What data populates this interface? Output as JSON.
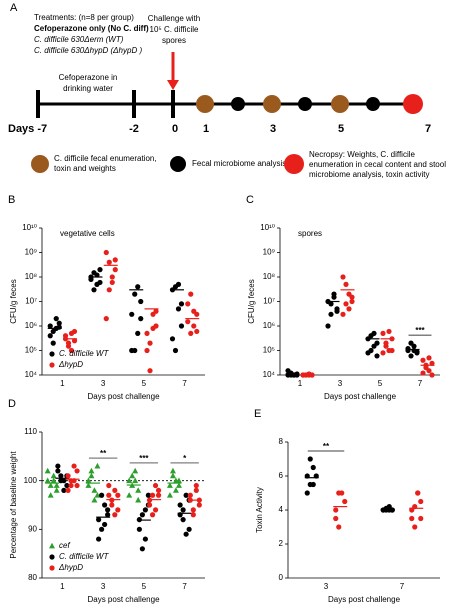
{
  "panel_a": {
    "label": "A",
    "treatments": [
      "Treatments: (n=8 per group)",
      "Cefoperazone only (No C. diff)",
      "C. difficile 630Δerm (WT)",
      "C. difficile 630ΔhypD (ΔhypD )"
    ],
    "challenge": [
      "Challenge with",
      "10⁵ C. difficile",
      "spores"
    ],
    "water": [
      "Cefoperazone in",
      "drinking water"
    ],
    "days": [
      "Days -7",
      "-2",
      "0",
      "1",
      "3",
      "5",
      "7"
    ],
    "legend": {
      "brown": [
        "C. difficile fecal enumeration,",
        "toxin and weights"
      ],
      "black": [
        "Fecal microbiome analysis"
      ],
      "red": [
        "Necropsy: Weights, C. difficile",
        "enumeration in cecal content and stool",
        "microbiome analysis, toxin activity"
      ]
    }
  },
  "chart_data": [
    {
      "type": "scatter",
      "label": "B",
      "title": "vegetative cells",
      "ylabel": "CFU/g feces",
      "xlabel": "Days post challenge",
      "categories": [
        "1",
        "3",
        "5",
        "7"
      ],
      "log_y": true,
      "ylim": [
        10000.0,
        10000000000.0
      ],
      "yticks": [
        {
          "value": 10000.0,
          "label": "10⁴"
        },
        {
          "value": 100000.0,
          "label": "10⁵"
        },
        {
          "value": 1000000.0,
          "label": "10⁶"
        },
        {
          "value": 10000000.0,
          "label": "10⁷"
        },
        {
          "value": 100000000.0,
          "label": "10⁸"
        },
        {
          "value": 1000000000.0,
          "label": "10⁹"
        },
        {
          "value": 10000000000.0,
          "label": "10¹⁰"
        }
      ],
      "legend": "lower left",
      "series": [
        {
          "name": "C. difficile WT",
          "color": "#000000",
          "marker": "circle",
          "values": [
            [
              1000000.0,
              600000.0,
              800000.0,
              1300000.0,
              400000.0,
              200000.0,
              2000000.0,
              900000.0
            ],
            [
              100000000.0,
              150000000.0,
              50000000.0,
              200000000.0,
              80000000.0,
              30000000.0,
              120000000.0,
              60000000.0
            ],
            [
              3000000.0,
              20000000.0,
              500000.0,
              10000000.0,
              100000.0,
              100000.0,
              40000000.0,
              2000000.0
            ],
            [
              30000000.0,
              40000000.0,
              5000000.0,
              1000000.0,
              300000.0,
              100000.0,
              50000000.0,
              8000000.0
            ]
          ],
          "means": [
            800000.0,
            100000000.0,
            30000000.0,
            30000000.0
          ]
        },
        {
          "name": "ΔhypD",
          "color": "#e8201c",
          "marker": "circle",
          "values": [
            [
              400000.0,
              200000.0,
              100000.0,
              600000.0,
              300000.0,
              150000.0,
              500000.0,
              250000.0
            ],
            [
              1000000000.0,
              400000000.0,
              60000000.0,
              200000000.0,
              2000000.0,
              30000000.0,
              100000000.0,
              500000000.0
            ],
            [
              500000.0,
              200000.0,
              3000000.0,
              1000000.0,
              100000.0,
              15000.0,
              800000.0,
              4000000.0
            ],
            [
              8000000.0,
              20000000.0,
              1000000.0,
              3000000.0,
              1500000.0,
              500000.0,
              4000000.0,
              600000.0
            ]
          ],
          "means": [
            300000.0,
            300000000.0,
            5000000.0,
            2000000.0
          ]
        }
      ]
    },
    {
      "type": "scatter",
      "label": "C",
      "title": "spores",
      "ylabel": "CFU/g feces",
      "xlabel": "Days post challenge",
      "categories": [
        "1",
        "3",
        "5",
        "7"
      ],
      "log_y": true,
      "ylim": [
        10000.0,
        10000000000.0
      ],
      "yticks": [
        {
          "value": 10000.0,
          "label": "10⁴"
        },
        {
          "value": 100000.0,
          "label": "10⁵"
        },
        {
          "value": 1000000.0,
          "label": "10⁶"
        },
        {
          "value": 10000000.0,
          "label": "10⁷"
        },
        {
          "value": 100000000.0,
          "label": "10⁸"
        },
        {
          "value": 1000000000.0,
          "label": "10⁹"
        },
        {
          "value": 10000000000.0,
          "label": "10¹⁰"
        }
      ],
      "annotations": [
        null,
        null,
        null,
        "***"
      ],
      "series": [
        {
          "color": "#000000",
          "marker": "circle",
          "values": [
            [
              10000.0,
              12000.0,
              10000.0,
              10000.0,
              15000.0,
              10000.0,
              10000.0,
              11000.0
            ],
            [
              10000000.0,
              3000000.0,
              20000000.0,
              5000000.0,
              1000000.0,
              8000000.0,
              15000000.0,
              4000000.0
            ],
            [
              300000.0,
              100000.0,
              500000.0,
              200000.0,
              80000.0,
              400000.0,
              150000.0,
              60000.0
            ],
            [
              100000.0,
              200000.0,
              150000.0,
              80000.0,
              120000.0,
              60000.0,
              100000.0,
              90000.0
            ]
          ],
          "means": [
            11000.0,
            10000000.0,
            300000.0,
            110000.0
          ]
        },
        {
          "color": "#e8201c",
          "marker": "circle",
          "values": [
            [
              10000.0,
              10000.0,
              11000.0,
              10000.0,
              10000.0,
              10000.0,
              10000.0,
              10000.0
            ],
            [
              100000000.0,
              50000000.0,
              20000000.0,
              10000000.0,
              3000000.0,
              8000000.0,
              5000000.0,
              15000000.0
            ],
            [
              500000.0,
              200000.0,
              100000.0,
              300000.0,
              80000.0,
              150000.0,
              600000.0,
              100000.0
            ],
            [
              40000.0,
              25000.0,
              15000.0,
              30000.0,
              12000.0,
              20000.0,
              50000.0,
              10000.0
            ]
          ],
          "means": [
            10000.0,
            30000000.0,
            300000.0,
            25000.0
          ]
        }
      ]
    },
    {
      "type": "scatter",
      "label": "D",
      "ylabel": "Percentage of baseline weight",
      "xlabel": "Days post challenge",
      "categories": [
        "1",
        "3",
        "5",
        "7"
      ],
      "ylim": [
        80,
        110
      ],
      "yticks": [
        80,
        90,
        100,
        110
      ],
      "refline": 100,
      "annotations": [
        null,
        "**",
        "***",
        "*"
      ],
      "legend": "lower left",
      "series": [
        {
          "name": "cef",
          "color": "#2ca02c",
          "marker": "triangle",
          "values": [
            [
              100,
              99,
              101,
              98,
              102,
              97,
              100,
              99
            ],
            [
              100,
              102,
              98,
              97,
              99,
              101,
              96,
              103
            ],
            [
              100,
              99,
              102,
              98,
              97,
              101,
              100,
              96
            ],
            [
              99,
              101,
              98,
              100,
              97,
              102,
              100,
              99
            ]
          ],
          "means": [
            99.5,
            99.5,
            99.1,
            99.5
          ]
        },
        {
          "name": "C. difficile WT",
          "color": "#000000",
          "marker": "circle",
          "values": [
            [
              103,
              101,
              100,
              99,
              102,
              100,
              98,
              101
            ],
            [
              92,
              90,
              95,
              93,
              88,
              97,
              91,
              94
            ],
            [
              90,
              93,
              88,
              95,
              92,
              86,
              94,
              97
            ],
            [
              95,
              92,
              97,
              90,
              93,
              94,
              89,
              96
            ]
          ],
          "means": [
            100.5,
            92.5,
            91.9,
            93.3
          ]
        },
        {
          "name": "ΔhypD",
          "color": "#e8201c",
          "marker": "circle",
          "values": [
            [
              101,
              99,
              100,
              102,
              98,
              100,
              103,
              99
            ],
            [
              97,
              95,
              98,
              94,
              99,
              96,
              93,
              97
            ],
            [
              95,
              97,
              94,
              98,
              96,
              93,
              99,
              97
            ],
            [
              96,
              94,
              98,
              95,
              97,
              93,
              99,
              96
            ]
          ],
          "means": [
            100.3,
            96.1,
            96.1,
            96
          ]
        }
      ]
    },
    {
      "type": "scatter",
      "label": "E",
      "ylabel": "Toxin Activity",
      "xlabel": "Days post challenge",
      "categories": [
        "3",
        "7"
      ],
      "ylim": [
        0,
        8
      ],
      "yticks": [
        0,
        2,
        4,
        6,
        8
      ],
      "annotations": [
        "**",
        null
      ],
      "series": [
        {
          "color": "#000000",
          "marker": "circle",
          "values": [
            [
              6,
              5.5,
              6.5,
              6,
              5,
              7,
              5.5
            ],
            [
              4,
              4,
              4.2,
              4,
              4,
              4.1,
              4,
              4
            ]
          ],
          "means": [
            5.9,
            4.04
          ]
        },
        {
          "color": "#e8201c",
          "marker": "circle",
          "values": [
            [
              4,
              3,
              5,
              4.5,
              3.5,
              5
            ],
            [
              4,
              3,
              5,
              4.5,
              3.5,
              4.2,
              5,
              3.5
            ]
          ],
          "means": [
            4.2,
            4.1
          ]
        }
      ]
    }
  ]
}
